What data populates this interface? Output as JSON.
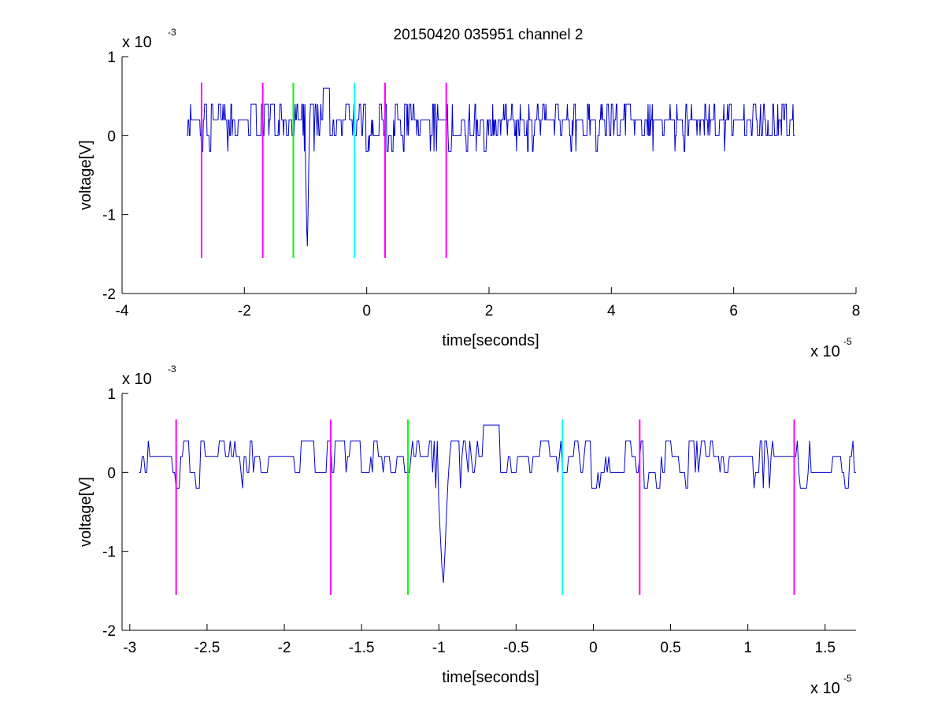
{
  "title": "20150420 035951 channel 2",
  "colors": {
    "signal": "#0000cc",
    "magenta": "#ff00ff",
    "green": "#00ff00",
    "cyan": "#00ffff",
    "axes": "#000000"
  },
  "chart_data": [
    {
      "type": "line",
      "name": "overview",
      "xlabel": "time[seconds]",
      "ylabel": "voltage[V]",
      "x_multiplier": "x 10",
      "x_exponent": "-5",
      "y_multiplier": "x 10",
      "y_exponent": "-3",
      "xlim": [
        -4,
        8
      ],
      "ylim": [
        -2,
        1
      ],
      "x_ticks": [
        -4,
        -2,
        0,
        2,
        4,
        6,
        8
      ],
      "x_tick_labels": [
        "-4",
        "-2",
        "0",
        "2",
        "4",
        "6",
        "8"
      ],
      "y_ticks": [
        -2,
        -1,
        0,
        1
      ],
      "y_tick_labels": [
        "-2",
        "-1",
        "0",
        "1"
      ],
      "signal_range": [
        -2.94,
        7.0
      ],
      "spike": {
        "x": -0.97,
        "y": -1.4
      },
      "markers": [
        {
          "x": -2.7,
          "color": "magenta",
          "y_range": [
            -1.55,
            0.67
          ]
        },
        {
          "x": -1.7,
          "color": "magenta",
          "y_range": [
            -1.55,
            0.67
          ]
        },
        {
          "x": -1.2,
          "color": "green",
          "y_range": [
            -1.55,
            0.67
          ]
        },
        {
          "x": -0.2,
          "color": "cyan",
          "y_range": [
            -1.55,
            0.67
          ]
        },
        {
          "x": 0.3,
          "color": "magenta",
          "y_range": [
            -1.55,
            0.67
          ]
        },
        {
          "x": 1.3,
          "color": "magenta",
          "y_range": [
            -1.55,
            0.67
          ]
        }
      ]
    },
    {
      "type": "line",
      "name": "zoom",
      "xlabel": "time[seconds]",
      "ylabel": "voltage[V]",
      "x_multiplier": "x 10",
      "x_exponent": "-5",
      "y_multiplier": "x 10",
      "y_exponent": "-3",
      "xlim": [
        -3.05,
        1.7
      ],
      "ylim": [
        -2,
        1
      ],
      "x_ticks": [
        -3,
        -2.5,
        -2,
        -1.5,
        -1,
        -0.5,
        0,
        0.5,
        1,
        1.5
      ],
      "x_tick_labels": [
        "-3",
        "-2.5",
        "-2",
        "-1.5",
        "-1",
        "-0.5",
        "0",
        "0.5",
        "1",
        "1.5"
      ],
      "y_ticks": [
        -2,
        -1,
        0,
        1
      ],
      "y_tick_labels": [
        "-2",
        "-1",
        "0",
        "1"
      ],
      "signal_range": [
        -2.94,
        1.7
      ],
      "spike": {
        "x": -0.97,
        "y": -1.4
      },
      "markers": [
        {
          "x": -2.7,
          "color": "magenta",
          "y_range": [
            -1.55,
            0.67
          ]
        },
        {
          "x": -1.7,
          "color": "magenta",
          "y_range": [
            -1.55,
            0.67
          ]
        },
        {
          "x": -1.2,
          "color": "green",
          "y_range": [
            -1.55,
            0.67
          ]
        },
        {
          "x": -0.2,
          "color": "cyan",
          "y_range": [
            -1.55,
            0.67
          ]
        },
        {
          "x": 0.3,
          "color": "magenta",
          "y_range": [
            -1.55,
            0.67
          ]
        },
        {
          "x": 1.3,
          "color": "magenta",
          "y_range": [
            -1.55,
            0.67
          ]
        }
      ]
    }
  ]
}
